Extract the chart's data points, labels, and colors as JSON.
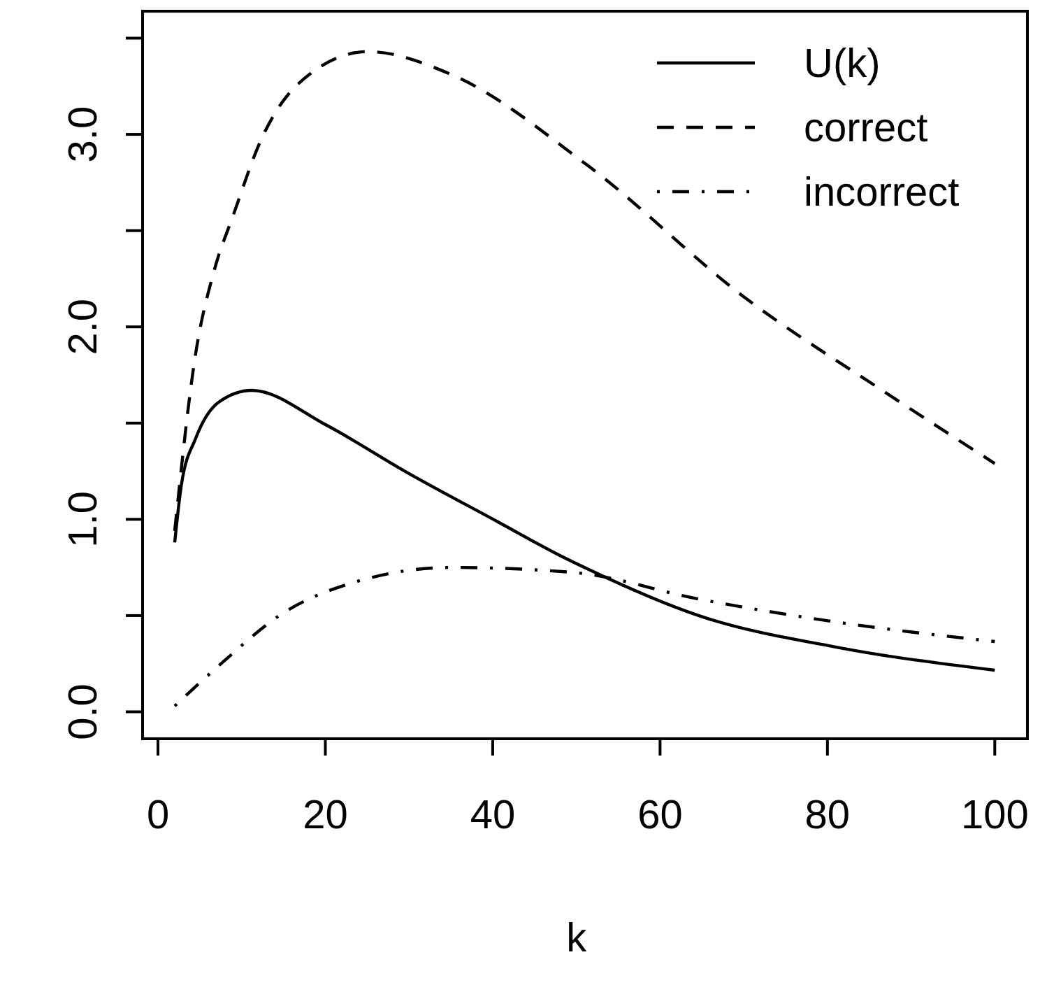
{
  "chart_data": {
    "type": "line",
    "xlabel": "k",
    "xlim": [
      -1.84,
      103.9
    ],
    "ylim": [
      -0.14,
      3.64
    ],
    "xticks": [
      0,
      20,
      40,
      60,
      80,
      100
    ],
    "yticks": [
      {
        "value": 0,
        "label": "0.0"
      },
      {
        "value": 0.5,
        "label": null
      },
      {
        "value": 1,
        "label": "1.0"
      },
      {
        "value": 1.5,
        "label": null
      },
      {
        "value": 2,
        "label": "2.0"
      },
      {
        "value": 2.5,
        "label": null
      },
      {
        "value": 3,
        "label": "3.0"
      },
      {
        "value": 3.5,
        "label": null
      }
    ],
    "legend": "top right",
    "grid": false,
    "series": [
      {
        "name": "U(k)",
        "color": "#000000",
        "line_style": "solid",
        "x": [
          2,
          2.8,
          4.5,
          7.3,
          11.2,
          20.1,
          29.5,
          40.7,
          47.9,
          51.3,
          64.6,
          81.3,
          100
        ],
        "values": [
          0.88,
          1.18,
          1.42,
          1.61,
          1.67,
          1.49,
          1.25,
          0.985,
          0.815,
          0.743,
          0.5,
          0.334,
          0.216
        ]
      },
      {
        "name": "correct",
        "color": "#000000",
        "line_style": "dashed",
        "x": [
          2,
          4.5,
          6.7,
          9,
          12.3,
          16.7,
          25.1,
          35.1,
          51.3,
          70.2,
          86.9,
          100
        ],
        "values": [
          0.94,
          1.86,
          2.29,
          2.58,
          2.97,
          3.26,
          3.43,
          3.31,
          2.84,
          2.15,
          1.66,
          1.29
        ]
      },
      {
        "name": "incorrect",
        "color": "#000000",
        "line_style": "dashdot",
        "x": [
          2,
          7.8,
          14.5,
          24,
          35.1,
          49.6,
          64.6,
          81.3,
          100
        ],
        "values": [
          0.03,
          0.26,
          0.5,
          0.68,
          0.75,
          0.724,
          0.586,
          0.465,
          0.365
        ]
      }
    ]
  }
}
